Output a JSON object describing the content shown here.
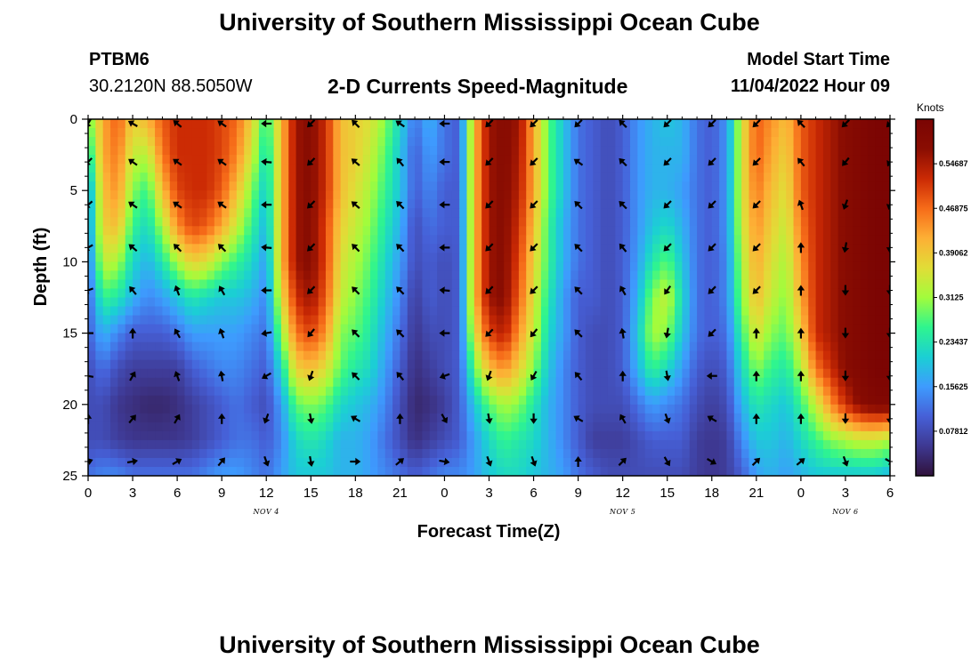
{
  "page": {
    "title": "University of Southern Mississippi Ocean Cube",
    "station_id": "PTBM6",
    "coordinates": "30.2120N  88.5050W",
    "model_start_label": "Model Start Time",
    "model_start_value": "11/04/2022 Hour 09",
    "second_title": "University of Southern Mississippi Ocean Cube"
  },
  "chart_data": {
    "type": "heatmap",
    "title": "2-D Currents Speed-Magnitude",
    "xlabel": "Forecast Time(Z)",
    "ylabel": "Depth (ft)",
    "x_tick_labels": [
      "0",
      "3",
      "6",
      "9",
      "12",
      "15",
      "18",
      "21",
      "0",
      "3",
      "6",
      "9",
      "12",
      "15",
      "18",
      "21",
      "0",
      "3",
      "6"
    ],
    "x_range_hours": [
      0,
      54
    ],
    "day_labels": [
      {
        "label": "NOV 4",
        "hour": 12
      },
      {
        "label": "NOV 5",
        "hour": 36
      },
      {
        "label": "NOV 6",
        "hour": 51
      }
    ],
    "y_tick_labels": [
      "0",
      "5",
      "10",
      "15",
      "20",
      "25"
    ],
    "y_range_ft": [
      0,
      25
    ],
    "colorbar": {
      "unit": "Knots",
      "ticks": [
        "0.07812",
        "0.15625",
        "0.23437",
        "0.3125",
        "0.39062",
        "0.46875",
        "0.54687"
      ],
      "range": [
        0,
        0.625
      ],
      "colors": [
        "#30123b",
        "#3e3891",
        "#4660d7",
        "#3e9bfe",
        "#1bcfd4",
        "#2ff58e",
        "#a2fc3c",
        "#e1dd37",
        "#fdaf35",
        "#f66b19",
        "#cb2a04",
        "#8a0d02",
        "#7a0403"
      ]
    },
    "speed_grid": {
      "hours": [
        0,
        1,
        2,
        3,
        4,
        5,
        6,
        7,
        8,
        9,
        10,
        11,
        12,
        13,
        14,
        15,
        16,
        17,
        18,
        19,
        20,
        21,
        22,
        23,
        24,
        25,
        26,
        27,
        28,
        29,
        30,
        31,
        32,
        33,
        34,
        35,
        36,
        37,
        38,
        39,
        40,
        41,
        42,
        43,
        44,
        45,
        46,
        47,
        48,
        49,
        50,
        51,
        52,
        53,
        54
      ],
      "depths_ft": [
        0,
        2.5,
        5,
        7.5,
        10,
        12.5,
        15,
        17.5,
        20,
        22.5,
        25
      ],
      "values": [
        [
          0.28,
          0.42,
          0.48,
          0.38,
          0.41,
          0.48,
          0.52,
          0.52,
          0.52,
          0.5,
          0.47,
          0.38,
          0.25,
          0.4,
          0.56,
          0.58,
          0.52,
          0.4,
          0.38,
          0.36,
          0.3,
          0.22,
          0.12,
          0.18,
          0.12,
          0.1,
          0.4,
          0.56,
          0.58,
          0.56,
          0.42,
          0.28,
          0.2,
          0.12,
          0.1,
          0.08,
          0.1,
          0.15,
          0.18,
          0.2,
          0.18,
          0.12,
          0.1,
          0.15,
          0.35,
          0.48,
          0.44,
          0.4,
          0.48,
          0.52,
          0.55,
          0.58,
          0.6,
          0.62,
          0.62
        ],
        [
          0.22,
          0.42,
          0.46,
          0.34,
          0.33,
          0.46,
          0.52,
          0.52,
          0.52,
          0.5,
          0.45,
          0.35,
          0.22,
          0.4,
          0.56,
          0.58,
          0.52,
          0.4,
          0.38,
          0.34,
          0.28,
          0.2,
          0.1,
          0.16,
          0.12,
          0.1,
          0.4,
          0.56,
          0.58,
          0.55,
          0.42,
          0.28,
          0.2,
          0.12,
          0.1,
          0.08,
          0.1,
          0.15,
          0.18,
          0.18,
          0.18,
          0.12,
          0.1,
          0.15,
          0.35,
          0.48,
          0.42,
          0.38,
          0.48,
          0.52,
          0.55,
          0.58,
          0.6,
          0.62,
          0.62
        ],
        [
          0.15,
          0.4,
          0.44,
          0.3,
          0.26,
          0.4,
          0.5,
          0.52,
          0.52,
          0.48,
          0.4,
          0.3,
          0.2,
          0.4,
          0.56,
          0.58,
          0.52,
          0.4,
          0.36,
          0.32,
          0.26,
          0.2,
          0.1,
          0.14,
          0.1,
          0.1,
          0.4,
          0.56,
          0.58,
          0.54,
          0.42,
          0.28,
          0.2,
          0.12,
          0.1,
          0.08,
          0.1,
          0.15,
          0.18,
          0.18,
          0.16,
          0.12,
          0.1,
          0.15,
          0.35,
          0.46,
          0.4,
          0.36,
          0.48,
          0.52,
          0.55,
          0.58,
          0.6,
          0.62,
          0.62
        ],
        [
          0.14,
          0.38,
          0.4,
          0.26,
          0.22,
          0.32,
          0.44,
          0.5,
          0.48,
          0.42,
          0.34,
          0.26,
          0.18,
          0.4,
          0.56,
          0.58,
          0.5,
          0.38,
          0.34,
          0.3,
          0.24,
          0.18,
          0.08,
          0.12,
          0.1,
          0.1,
          0.4,
          0.56,
          0.58,
          0.52,
          0.4,
          0.26,
          0.18,
          0.12,
          0.1,
          0.08,
          0.1,
          0.15,
          0.2,
          0.22,
          0.18,
          0.12,
          0.1,
          0.15,
          0.34,
          0.44,
          0.38,
          0.34,
          0.46,
          0.52,
          0.55,
          0.58,
          0.6,
          0.62,
          0.62
        ],
        [
          0.12,
          0.34,
          0.32,
          0.22,
          0.18,
          0.24,
          0.32,
          0.38,
          0.36,
          0.3,
          0.26,
          0.22,
          0.16,
          0.4,
          0.56,
          0.58,
          0.5,
          0.36,
          0.32,
          0.28,
          0.22,
          0.16,
          0.08,
          0.1,
          0.08,
          0.1,
          0.4,
          0.56,
          0.58,
          0.5,
          0.38,
          0.26,
          0.18,
          0.12,
          0.1,
          0.08,
          0.1,
          0.16,
          0.24,
          0.28,
          0.2,
          0.12,
          0.1,
          0.14,
          0.32,
          0.42,
          0.36,
          0.32,
          0.44,
          0.52,
          0.55,
          0.58,
          0.6,
          0.62,
          0.62
        ],
        [
          0.1,
          0.26,
          0.24,
          0.18,
          0.14,
          0.16,
          0.2,
          0.24,
          0.22,
          0.2,
          0.2,
          0.18,
          0.14,
          0.36,
          0.52,
          0.56,
          0.48,
          0.34,
          0.3,
          0.26,
          0.2,
          0.14,
          0.06,
          0.1,
          0.08,
          0.1,
          0.4,
          0.56,
          0.58,
          0.48,
          0.36,
          0.24,
          0.16,
          0.1,
          0.1,
          0.08,
          0.1,
          0.18,
          0.3,
          0.34,
          0.22,
          0.12,
          0.1,
          0.14,
          0.3,
          0.4,
          0.34,
          0.3,
          0.42,
          0.52,
          0.55,
          0.58,
          0.6,
          0.62,
          0.62
        ],
        [
          0.1,
          0.18,
          0.14,
          0.1,
          0.1,
          0.1,
          0.12,
          0.16,
          0.16,
          0.16,
          0.16,
          0.14,
          0.12,
          0.3,
          0.46,
          0.5,
          0.44,
          0.3,
          0.28,
          0.24,
          0.18,
          0.12,
          0.05,
          0.08,
          0.08,
          0.1,
          0.36,
          0.5,
          0.54,
          0.44,
          0.34,
          0.22,
          0.16,
          0.1,
          0.08,
          0.08,
          0.1,
          0.2,
          0.32,
          0.3,
          0.2,
          0.12,
          0.1,
          0.12,
          0.26,
          0.36,
          0.3,
          0.28,
          0.38,
          0.52,
          0.55,
          0.58,
          0.6,
          0.62,
          0.62
        ],
        [
          0.08,
          0.12,
          0.08,
          0.06,
          0.06,
          0.06,
          0.06,
          0.1,
          0.12,
          0.14,
          0.14,
          0.12,
          0.1,
          0.22,
          0.38,
          0.4,
          0.36,
          0.28,
          0.24,
          0.22,
          0.16,
          0.1,
          0.04,
          0.06,
          0.08,
          0.1,
          0.28,
          0.4,
          0.44,
          0.38,
          0.3,
          0.2,
          0.14,
          0.1,
          0.08,
          0.08,
          0.1,
          0.18,
          0.26,
          0.22,
          0.16,
          0.1,
          0.08,
          0.1,
          0.22,
          0.3,
          0.26,
          0.24,
          0.32,
          0.46,
          0.52,
          0.58,
          0.6,
          0.62,
          0.62
        ],
        [
          0.08,
          0.08,
          0.05,
          0.04,
          0.03,
          0.03,
          0.04,
          0.06,
          0.08,
          0.1,
          0.12,
          0.1,
          0.08,
          0.16,
          0.28,
          0.3,
          0.28,
          0.22,
          0.2,
          0.18,
          0.14,
          0.08,
          0.03,
          0.04,
          0.06,
          0.1,
          0.2,
          0.28,
          0.32,
          0.3,
          0.24,
          0.18,
          0.14,
          0.1,
          0.08,
          0.08,
          0.08,
          0.12,
          0.16,
          0.14,
          0.12,
          0.08,
          0.06,
          0.08,
          0.18,
          0.24,
          0.22,
          0.2,
          0.26,
          0.34,
          0.44,
          0.52,
          0.58,
          0.6,
          0.6
        ],
        [
          0.08,
          0.08,
          0.06,
          0.05,
          0.05,
          0.05,
          0.05,
          0.06,
          0.08,
          0.1,
          0.12,
          0.12,
          0.1,
          0.14,
          0.22,
          0.24,
          0.22,
          0.18,
          0.18,
          0.16,
          0.12,
          0.08,
          0.04,
          0.06,
          0.08,
          0.1,
          0.16,
          0.22,
          0.26,
          0.24,
          0.22,
          0.18,
          0.14,
          0.1,
          0.06,
          0.06,
          0.06,
          0.08,
          0.1,
          0.1,
          0.1,
          0.06,
          0.05,
          0.06,
          0.14,
          0.2,
          0.2,
          0.18,
          0.22,
          0.26,
          0.3,
          0.32,
          0.34,
          0.34,
          0.32
        ],
        [
          0.12,
          0.14,
          0.14,
          0.12,
          0.12,
          0.12,
          0.12,
          0.12,
          0.14,
          0.16,
          0.16,
          0.14,
          0.12,
          0.16,
          0.2,
          0.2,
          0.2,
          0.18,
          0.18,
          0.16,
          0.14,
          0.12,
          0.1,
          0.12,
          0.14,
          0.14,
          0.16,
          0.2,
          0.22,
          0.22,
          0.2,
          0.18,
          0.16,
          0.12,
          0.1,
          0.08,
          0.08,
          0.08,
          0.08,
          0.08,
          0.08,
          0.06,
          0.05,
          0.06,
          0.1,
          0.16,
          0.18,
          0.16,
          0.18,
          0.2,
          0.2,
          0.2,
          0.2,
          0.2,
          0.18
        ]
      ]
    },
    "vectors": {
      "hours": [
        0,
        3,
        6,
        9,
        12,
        15,
        18,
        21,
        24,
        27,
        30,
        33,
        36,
        39,
        42,
        45,
        48,
        51,
        54
      ],
      "depths_ft": [
        0,
        3,
        6,
        9,
        12,
        15,
        18,
        21,
        24
      ],
      "directions_deg": [
        [
          210,
          300,
          310,
          305,
          270,
          225,
          315,
          305,
          270,
          225,
          225,
          225,
          315,
          225,
          225,
          225,
          315,
          225,
          225
        ],
        [
          225,
          305,
          305,
          305,
          275,
          225,
          310,
          320,
          270,
          225,
          225,
          305,
          315,
          225,
          225,
          225,
          320,
          220,
          210
        ],
        [
          230,
          305,
          305,
          305,
          270,
          225,
          310,
          315,
          270,
          225,
          225,
          315,
          315,
          225,
          225,
          225,
          340,
          200,
          195
        ],
        [
          240,
          310,
          315,
          315,
          275,
          225,
          315,
          315,
          270,
          225,
          225,
          315,
          320,
          225,
          225,
          225,
          0,
          190,
          185
        ],
        [
          250,
          320,
          340,
          330,
          270,
          225,
          315,
          315,
          275,
          225,
          225,
          315,
          330,
          215,
          225,
          225,
          0,
          180,
          180
        ],
        [
          270,
          0,
          330,
          340,
          260,
          220,
          315,
          315,
          270,
          225,
          220,
          315,
          350,
          190,
          225,
          0,
          0,
          180,
          180
        ],
        [
          280,
          30,
          340,
          350,
          240,
          200,
          315,
          320,
          250,
          200,
          210,
          320,
          0,
          170,
          270,
          0,
          0,
          180,
          180
        ],
        [
          0,
          40,
          30,
          0,
          200,
          170,
          300,
          0,
          150,
          170,
          180,
          300,
          330,
          160,
          300,
          0,
          0,
          180,
          180
        ],
        [
          70,
          80,
          60,
          40,
          160,
          170,
          90,
          50,
          100,
          160,
          160,
          0,
          45,
          150,
          120,
          45,
          50,
          160,
          120
        ]
      ]
    }
  }
}
